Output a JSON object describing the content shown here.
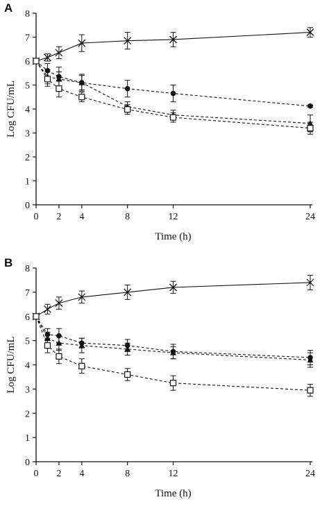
{
  "chart_data": [
    {
      "type": "line",
      "panel_label": "A",
      "title": "",
      "xlabel": "Time (h)",
      "ylabel": "Log CFU/mL",
      "x_ticks": [
        0,
        2,
        4,
        8,
        12,
        24
      ],
      "y_ticks": [
        0,
        1,
        2,
        3,
        4,
        5,
        6,
        7,
        8
      ],
      "xlim": [
        0,
        24
      ],
      "ylim": [
        0,
        8
      ],
      "grid": false,
      "series": [
        {
          "marker": "cross",
          "line": "solid",
          "x": [
            0,
            1,
            2,
            4,
            8,
            12,
            24
          ],
          "y": [
            6.0,
            6.15,
            6.35,
            6.75,
            6.85,
            6.9,
            7.2
          ],
          "err": [
            0.1,
            0.15,
            0.25,
            0.35,
            0.35,
            0.3,
            0.2
          ]
        },
        {
          "marker": "filled-circle",
          "line": "dashed",
          "x": [
            0,
            1,
            2,
            4,
            8,
            12,
            24
          ],
          "y": [
            6.0,
            5.6,
            5.35,
            5.1,
            4.85,
            4.65,
            4.12
          ],
          "err": [
            0.1,
            0.3,
            0.4,
            0.35,
            0.35,
            0.35,
            0.05
          ]
        },
        {
          "marker": "filled-triangle",
          "line": "dashed",
          "x": [
            0,
            1,
            2,
            4,
            8,
            12,
            24
          ],
          "y": [
            6.0,
            5.35,
            5.25,
            5.1,
            4.1,
            3.75,
            3.4
          ],
          "err": [
            0.1,
            0.3,
            0.3,
            0.3,
            0.2,
            0.2,
            0.35
          ]
        },
        {
          "marker": "open-square",
          "line": "dashed",
          "x": [
            0,
            1,
            2,
            4,
            8,
            12,
            24
          ],
          "y": [
            6.0,
            5.25,
            4.85,
            4.5,
            3.98,
            3.65,
            3.2
          ],
          "err": [
            0.1,
            0.3,
            0.35,
            0.2,
            0.2,
            0.2,
            0.25
          ]
        }
      ]
    },
    {
      "type": "line",
      "panel_label": "B",
      "title": "",
      "xlabel": "Time (h)",
      "ylabel": "Log CFU/mL",
      "x_ticks": [
        0,
        2,
        4,
        8,
        12,
        24
      ],
      "y_ticks": [
        0,
        1,
        2,
        3,
        4,
        5,
        6,
        7,
        8
      ],
      "xlim": [
        0,
        24
      ],
      "ylim": [
        0,
        8
      ],
      "grid": false,
      "series": [
        {
          "marker": "cross",
          "line": "solid",
          "x": [
            0,
            1,
            2,
            4,
            8,
            12,
            24
          ],
          "y": [
            6.0,
            6.3,
            6.55,
            6.8,
            7.0,
            7.2,
            7.4
          ],
          "err": [
            0.1,
            0.2,
            0.25,
            0.25,
            0.3,
            0.25,
            0.3
          ]
        },
        {
          "marker": "filled-circle",
          "line": "dashed",
          "x": [
            0,
            1,
            2,
            4,
            8,
            12,
            24
          ],
          "y": [
            6.0,
            5.25,
            5.2,
            4.9,
            4.8,
            4.55,
            4.3
          ],
          "err": [
            0.1,
            0.25,
            0.3,
            0.2,
            0.25,
            0.3,
            0.3
          ]
        },
        {
          "marker": "filled-triangle",
          "line": "dashed",
          "x": [
            0,
            1,
            2,
            4,
            8,
            12,
            24
          ],
          "y": [
            6.0,
            5.1,
            4.9,
            4.8,
            4.65,
            4.5,
            4.2
          ],
          "err": [
            0.1,
            0.25,
            0.3,
            0.3,
            0.25,
            0.25,
            0.3
          ]
        },
        {
          "marker": "open-square",
          "line": "dashed",
          "x": [
            0,
            1,
            2,
            4,
            8,
            12,
            24
          ],
          "y": [
            6.0,
            4.8,
            4.35,
            3.95,
            3.6,
            3.25,
            2.95
          ],
          "err": [
            0.1,
            0.3,
            0.3,
            0.3,
            0.25,
            0.3,
            0.25
          ]
        }
      ]
    }
  ]
}
